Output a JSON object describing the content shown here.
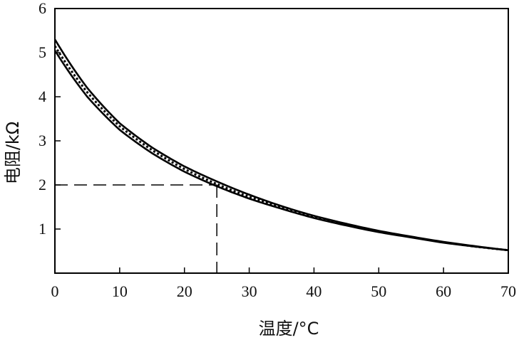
{
  "chart_data": {
    "type": "line",
    "xlabel": "温度/°C",
    "ylabel": "电阻/kΩ",
    "xlim": [
      0,
      70
    ],
    "ylim": [
      0,
      6
    ],
    "x_ticks": [
      0,
      10,
      20,
      30,
      40,
      50,
      60,
      70
    ],
    "y_ticks": [
      1,
      2,
      3,
      4,
      5,
      6
    ],
    "grid": false,
    "series": [
      {
        "x": [
          0,
          5,
          10,
          15,
          20,
          25,
          30,
          35,
          40,
          45,
          50,
          55,
          60,
          65,
          70
        ],
        "values": [
          5.3,
          4.2,
          3.4,
          2.85,
          2.42,
          2.08,
          1.78,
          1.52,
          1.3,
          1.12,
          0.96,
          0.83,
          0.71,
          0.61,
          0.52
        ],
        "style": "solid"
      },
      {
        "x": [
          0,
          5,
          10,
          15,
          20,
          25,
          30,
          35,
          40,
          45,
          50,
          55,
          60,
          65,
          70
        ],
        "values": [
          5.15,
          4.1,
          3.33,
          2.79,
          2.36,
          2.02,
          1.73,
          1.49,
          1.28,
          1.1,
          0.95,
          0.82,
          0.7,
          0.6,
          0.52
        ],
        "style": "dotted"
      },
      {
        "x": [
          0,
          5,
          10,
          15,
          20,
          25,
          30,
          35,
          40,
          45,
          50,
          55,
          60,
          65,
          70
        ],
        "values": [
          5.05,
          4.0,
          3.25,
          2.72,
          2.3,
          1.97,
          1.69,
          1.46,
          1.25,
          1.08,
          0.93,
          0.81,
          0.69,
          0.6,
          0.52
        ],
        "style": "solid"
      }
    ],
    "reference_point": {
      "x": 25,
      "y": 2
    }
  }
}
